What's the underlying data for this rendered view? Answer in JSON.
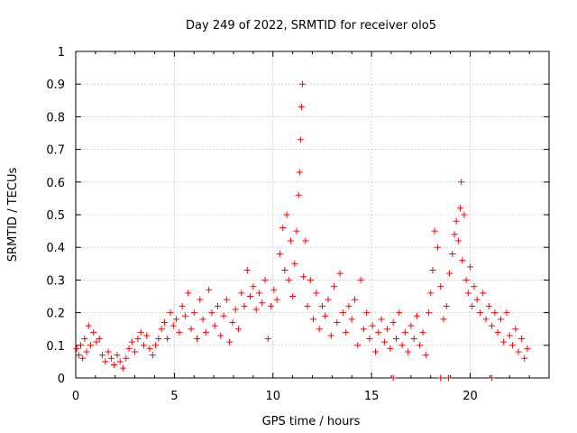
{
  "chart_data": {
    "type": "scatter",
    "title": "Day 249 of 2022, SRMTID for receiver olo5",
    "xlabel": "GPS time / hours",
    "ylabel": "SRMTID / TECUs",
    "xlim": [
      0,
      24
    ],
    "ylim": [
      0,
      1
    ],
    "xticks": [
      0,
      5,
      10,
      15,
      20
    ],
    "xtick_labels": [
      "0",
      "5",
      "10",
      "15",
      "20"
    ],
    "yticks": [
      0,
      0.1,
      0.2,
      0.3,
      0.4,
      0.5,
      0.6,
      0.7,
      0.8,
      0.9,
      1
    ],
    "ytick_labels": [
      "0",
      "0.1",
      "0.2",
      "0.3",
      "0.4",
      "0.5",
      "0.6",
      "0.7",
      "0.8",
      "0.9",
      "1"
    ],
    "grid": true,
    "marker_color": "#ff0000",
    "series": [
      {
        "name": "SRMTID",
        "points": [
          [
            0.05,
            0.09
          ],
          [
            0.15,
            0.07
          ],
          [
            0.25,
            0.1
          ],
          [
            0.35,
            0.06
          ],
          [
            0.45,
            0.12
          ],
          [
            0.55,
            0.08
          ],
          [
            0.65,
            0.16
          ],
          [
            0.75,
            0.1
          ],
          [
            0.9,
            0.14
          ],
          [
            1.05,
            0.11
          ],
          [
            1.2,
            0.12
          ],
          [
            1.35,
            0.07
          ],
          [
            1.5,
            0.05
          ],
          [
            1.65,
            0.08
          ],
          [
            1.8,
            0.06
          ],
          [
            1.95,
            0.04
          ],
          [
            2.1,
            0.07
          ],
          [
            2.25,
            0.05
          ],
          [
            2.4,
            0.03
          ],
          [
            2.55,
            0.06
          ],
          [
            2.7,
            0.09
          ],
          [
            2.85,
            0.11
          ],
          [
            3.0,
            0.08
          ],
          [
            3.15,
            0.12
          ],
          [
            3.3,
            0.14
          ],
          [
            3.45,
            0.1
          ],
          [
            3.6,
            0.13
          ],
          [
            3.75,
            0.09
          ],
          [
            3.9,
            0.07
          ],
          [
            4.05,
            0.1
          ],
          [
            4.2,
            0.12
          ],
          [
            4.35,
            0.15
          ],
          [
            4.5,
            0.17
          ],
          [
            4.65,
            0.12
          ],
          [
            4.8,
            0.2
          ],
          [
            4.95,
            0.16
          ],
          [
            5.1,
            0.18
          ],
          [
            5.25,
            0.14
          ],
          [
            5.4,
            0.22
          ],
          [
            5.55,
            0.19
          ],
          [
            5.7,
            0.26
          ],
          [
            5.85,
            0.15
          ],
          [
            6.0,
            0.2
          ],
          [
            6.15,
            0.12
          ],
          [
            6.3,
            0.24
          ],
          [
            6.45,
            0.18
          ],
          [
            6.6,
            0.14
          ],
          [
            6.75,
            0.27
          ],
          [
            6.9,
            0.2
          ],
          [
            7.05,
            0.16
          ],
          [
            7.2,
            0.22
          ],
          [
            7.35,
            0.13
          ],
          [
            7.5,
            0.19
          ],
          [
            7.65,
            0.24
          ],
          [
            7.8,
            0.11
          ],
          [
            7.95,
            0.17
          ],
          [
            8.1,
            0.21
          ],
          [
            8.25,
            0.15
          ],
          [
            8.4,
            0.26
          ],
          [
            8.55,
            0.22
          ],
          [
            8.7,
            0.33
          ],
          [
            8.85,
            0.25
          ],
          [
            9.0,
            0.28
          ],
          [
            9.15,
            0.21
          ],
          [
            9.3,
            0.26
          ],
          [
            9.45,
            0.23
          ],
          [
            9.6,
            0.3
          ],
          [
            9.75,
            0.12
          ],
          [
            9.9,
            0.22
          ],
          [
            10.05,
            0.27
          ],
          [
            10.2,
            0.24
          ],
          [
            10.35,
            0.38
          ],
          [
            10.5,
            0.46
          ],
          [
            10.6,
            0.33
          ],
          [
            10.7,
            0.5
          ],
          [
            10.8,
            0.3
          ],
          [
            10.9,
            0.42
          ],
          [
            11.0,
            0.25
          ],
          [
            11.1,
            0.35
          ],
          [
            11.2,
            0.45
          ],
          [
            11.3,
            0.56
          ],
          [
            11.35,
            0.63
          ],
          [
            11.4,
            0.73
          ],
          [
            11.45,
            0.83
          ],
          [
            11.5,
            0.9
          ],
          [
            11.55,
            0.31
          ],
          [
            11.65,
            0.42
          ],
          [
            11.75,
            0.22
          ],
          [
            11.9,
            0.3
          ],
          [
            12.05,
            0.18
          ],
          [
            12.2,
            0.26
          ],
          [
            12.35,
            0.15
          ],
          [
            12.5,
            0.22
          ],
          [
            12.65,
            0.19
          ],
          [
            12.8,
            0.24
          ],
          [
            12.95,
            0.13
          ],
          [
            13.1,
            0.28
          ],
          [
            13.25,
            0.17
          ],
          [
            13.4,
            0.32
          ],
          [
            13.55,
            0.2
          ],
          [
            13.7,
            0.14
          ],
          [
            13.85,
            0.22
          ],
          [
            14.0,
            0.18
          ],
          [
            14.15,
            0.24
          ],
          [
            14.3,
            0.1
          ],
          [
            14.45,
            0.3
          ],
          [
            14.6,
            0.15
          ],
          [
            14.75,
            0.2
          ],
          [
            14.9,
            0.12
          ],
          [
            15.05,
            0.16
          ],
          [
            15.2,
            0.08
          ],
          [
            15.35,
            0.14
          ],
          [
            15.5,
            0.18
          ],
          [
            15.65,
            0.11
          ],
          [
            15.8,
            0.15
          ],
          [
            15.95,
            0.09
          ],
          [
            16.1,
            0.17
          ],
          [
            16.25,
            0.12
          ],
          [
            16.4,
            0.2
          ],
          [
            16.55,
            0.1
          ],
          [
            16.7,
            0.14
          ],
          [
            16.85,
            0.08
          ],
          [
            17.0,
            0.16
          ],
          [
            17.15,
            0.12
          ],
          [
            17.3,
            0.19
          ],
          [
            17.45,
            0.1
          ],
          [
            17.6,
            0.14
          ],
          [
            17.75,
            0.07
          ],
          [
            17.9,
            0.2
          ],
          [
            18.0,
            0.26
          ],
          [
            18.1,
            0.33
          ],
          [
            18.2,
            0.45
          ],
          [
            18.35,
            0.4
          ],
          [
            18.5,
            0.28
          ],
          [
            18.65,
            0.18
          ],
          [
            18.8,
            0.22
          ],
          [
            18.95,
            0.32
          ],
          [
            19.1,
            0.38
          ],
          [
            19.2,
            0.44
          ],
          [
            19.3,
            0.48
          ],
          [
            19.4,
            0.42
          ],
          [
            19.5,
            0.52
          ],
          [
            19.55,
            0.6
          ],
          [
            19.6,
            0.36
          ],
          [
            19.7,
            0.5
          ],
          [
            19.8,
            0.3
          ],
          [
            19.9,
            0.26
          ],
          [
            20.0,
            0.34
          ],
          [
            20.1,
            0.22
          ],
          [
            20.2,
            0.28
          ],
          [
            20.35,
            0.24
          ],
          [
            20.5,
            0.2
          ],
          [
            20.65,
            0.26
          ],
          [
            20.8,
            0.18
          ],
          [
            20.95,
            0.22
          ],
          [
            21.1,
            0.16
          ],
          [
            21.25,
            0.2
          ],
          [
            21.4,
            0.14
          ],
          [
            21.55,
            0.18
          ],
          [
            21.7,
            0.11
          ],
          [
            21.85,
            0.2
          ],
          [
            22.0,
            0.13
          ],
          [
            22.15,
            0.1
          ],
          [
            22.3,
            0.15
          ],
          [
            22.45,
            0.08
          ],
          [
            22.6,
            0.12
          ],
          [
            22.75,
            0.06
          ],
          [
            22.9,
            0.09
          ],
          [
            16.1,
            0.0
          ],
          [
            18.5,
            0.0
          ],
          [
            18.9,
            0.0
          ],
          [
            21.1,
            0.0
          ]
        ]
      }
    ]
  }
}
